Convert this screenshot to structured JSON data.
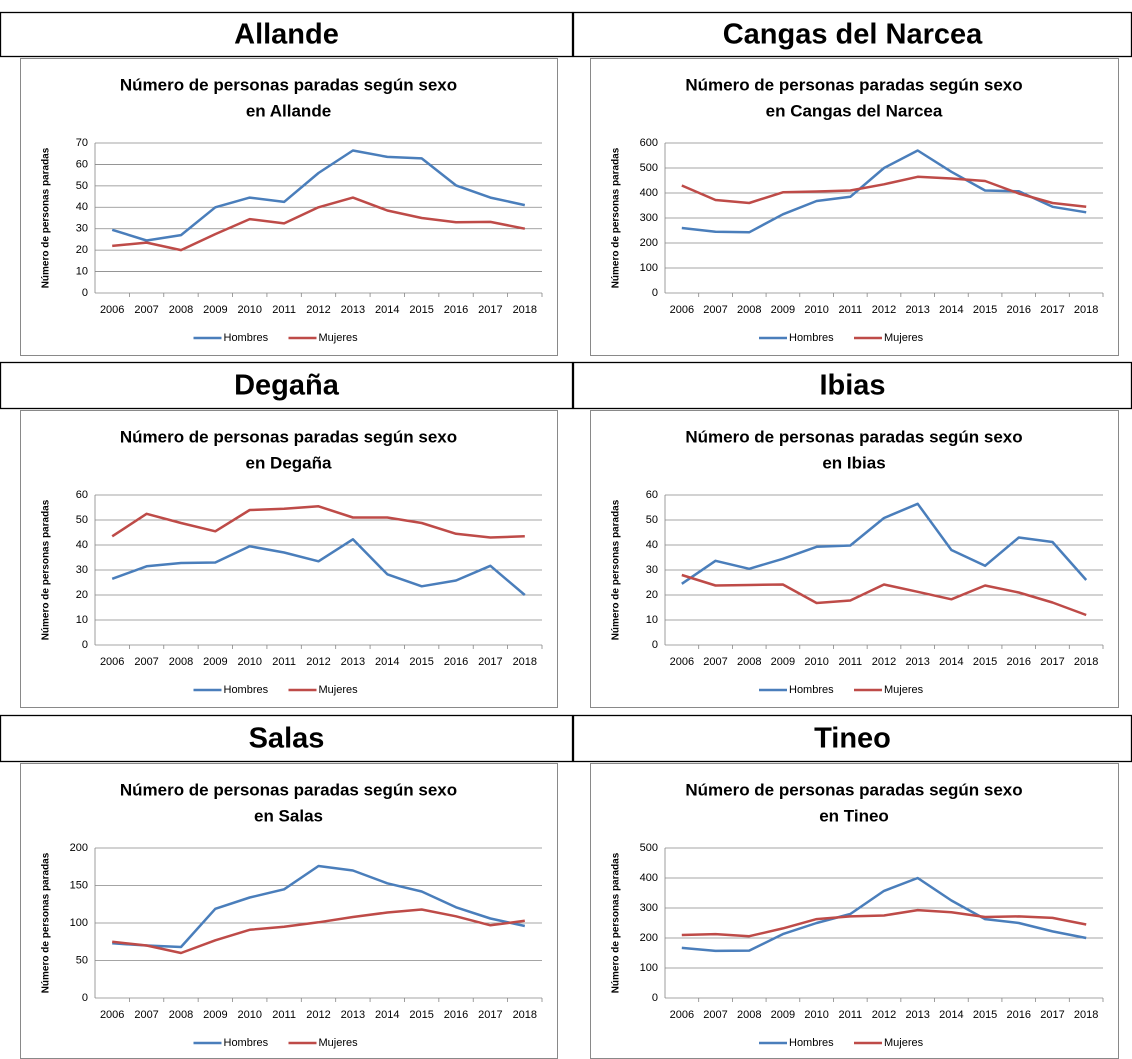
{
  "headers": [
    "Allande",
    "Cangas del Narcea",
    "Degaña",
    "Ibias",
    "Salas",
    "Tineo"
  ],
  "chart_data": [
    {
      "type": "line",
      "title": [
        "Número de personas paradas según sexo",
        "en Allande"
      ],
      "ylabel": "Número de personas paradas",
      "categories": [
        "2006",
        "2007",
        "2008",
        "2009",
        "2010",
        "2011",
        "2012",
        "2013",
        "2014",
        "2015",
        "2016",
        "2017",
        "2018"
      ],
      "ylim": [
        0,
        70
      ],
      "yticks": [
        0,
        10,
        20,
        30,
        40,
        50,
        60,
        70
      ],
      "grid": true,
      "legend": "bottom",
      "series": [
        {
          "name": "Hombres",
          "color": "#4a7ebb",
          "values": [
            29.5,
            24.5,
            27,
            40,
            44.5,
            42.5,
            56,
            66.5,
            63.5,
            62.8,
            50.2,
            44.5,
            41
          ]
        },
        {
          "name": "Mujeres",
          "color": "#be4b48",
          "values": [
            22,
            23.5,
            20,
            27.5,
            34.5,
            32.5,
            40,
            44.5,
            38.5,
            35,
            33,
            33.2,
            30
          ]
        }
      ]
    },
    {
      "type": "line",
      "title": [
        "Número de personas paradas según sexo",
        "en Cangas del Narcea"
      ],
      "ylabel": "Número de personas paradas",
      "categories": [
        "2006",
        "2007",
        "2008",
        "2009",
        "2010",
        "2011",
        "2012",
        "2013",
        "2014",
        "2015",
        "2016",
        "2017",
        "2018"
      ],
      "ylim": [
        0,
        600
      ],
      "yticks": [
        0,
        100,
        200,
        300,
        400,
        500,
        600
      ],
      "grid": true,
      "legend": "bottom",
      "series": [
        {
          "name": "Hombres",
          "color": "#4a7ebb",
          "values": [
            260,
            245,
            243,
            315,
            368,
            385,
            500,
            570,
            485,
            410,
            407,
            345,
            323
          ]
        },
        {
          "name": "Mujeres",
          "color": "#be4b48",
          "values": [
            430,
            372,
            360,
            403,
            406,
            410,
            435,
            465,
            458,
            448,
            398,
            360,
            345
          ]
        }
      ]
    },
    {
      "type": "line",
      "title": [
        "Número de personas paradas según sexo",
        "en Degaña"
      ],
      "ylabel": "Número de personas paradas",
      "categories": [
        "2006",
        "2007",
        "2008",
        "2009",
        "2010",
        "2011",
        "2012",
        "2013",
        "2014",
        "2015",
        "2016",
        "2017",
        "2018"
      ],
      "ylim": [
        0,
        60
      ],
      "yticks": [
        0,
        10,
        20,
        30,
        40,
        50,
        60
      ],
      "grid": true,
      "legend": "bottom",
      "series": [
        {
          "name": "Hombres",
          "color": "#4a7ebb",
          "values": [
            26.5,
            31.5,
            32.8,
            33,
            39.5,
            37,
            33.5,
            42.3,
            28.3,
            23.5,
            25.8,
            31.7,
            20
          ]
        },
        {
          "name": "Mujeres",
          "color": "#be4b48",
          "values": [
            43.5,
            52.5,
            48.8,
            45.5,
            54,
            54.5,
            55.5,
            51,
            51,
            48.8,
            44.5,
            43,
            43.5
          ]
        }
      ]
    },
    {
      "type": "line",
      "title": [
        "Número de personas paradas según sexo",
        "en Ibias"
      ],
      "ylabel": "Número de personas paradas",
      "categories": [
        "2006",
        "2007",
        "2008",
        "2009",
        "2010",
        "2011",
        "2012",
        "2013",
        "2014",
        "2015",
        "2016",
        "2017",
        "2018"
      ],
      "ylim": [
        0,
        60
      ],
      "yticks": [
        0,
        10,
        20,
        30,
        40,
        50,
        60
      ],
      "grid": true,
      "legend": "bottom",
      "series": [
        {
          "name": "Hombres",
          "color": "#4a7ebb",
          "values": [
            24.5,
            33.7,
            30.5,
            34.5,
            39.3,
            39.8,
            50.8,
            56.5,
            38,
            31.7,
            43,
            41.2,
            26
          ]
        },
        {
          "name": "Mujeres",
          "color": "#be4b48",
          "values": [
            28,
            23.8,
            24,
            24.2,
            16.8,
            17.8,
            24.2,
            21.3,
            18.3,
            23.8,
            21,
            17,
            12
          ]
        }
      ]
    },
    {
      "type": "line",
      "title": [
        "Número de personas paradas según sexo",
        "en Salas"
      ],
      "ylabel": "Número de personas paradas",
      "categories": [
        "2006",
        "2007",
        "2008",
        "2009",
        "2010",
        "2011",
        "2012",
        "2013",
        "2014",
        "2015",
        "2016",
        "2017",
        "2018"
      ],
      "ylim": [
        0,
        200
      ],
      "yticks": [
        0,
        50,
        100,
        150,
        200
      ],
      "grid": true,
      "legend": "bottom",
      "series": [
        {
          "name": "Hombres",
          "color": "#4a7ebb",
          "values": [
            73,
            70,
            68,
            119,
            134,
            145,
            176,
            170,
            153,
            142,
            121,
            106,
            96
          ]
        },
        {
          "name": "Mujeres",
          "color": "#be4b48",
          "values": [
            75,
            70,
            60,
            77,
            91,
            95,
            101,
            108,
            114,
            118,
            109,
            97,
            103
          ]
        }
      ]
    },
    {
      "type": "line",
      "title": [
        "Número de personas paradas según sexo",
        "en Tineo"
      ],
      "ylabel": "Número de personas paradas",
      "categories": [
        "2006",
        "2007",
        "2008",
        "2009",
        "2010",
        "2011",
        "2012",
        "2013",
        "2014",
        "2015",
        "2016",
        "2017",
        "2018"
      ],
      "ylim": [
        0,
        500
      ],
      "yticks": [
        0,
        100,
        200,
        300,
        400,
        500
      ],
      "grid": true,
      "legend": "bottom",
      "series": [
        {
          "name": "Hombres",
          "color": "#4a7ebb",
          "values": [
            167,
            157,
            158,
            213,
            250,
            280,
            357,
            400,
            325,
            263,
            250,
            222,
            200
          ]
        },
        {
          "name": "Mujeres",
          "color": "#be4b48",
          "values": [
            210,
            213,
            206,
            232,
            263,
            272,
            275,
            293,
            286,
            270,
            272,
            267,
            245
          ]
        }
      ]
    }
  ]
}
